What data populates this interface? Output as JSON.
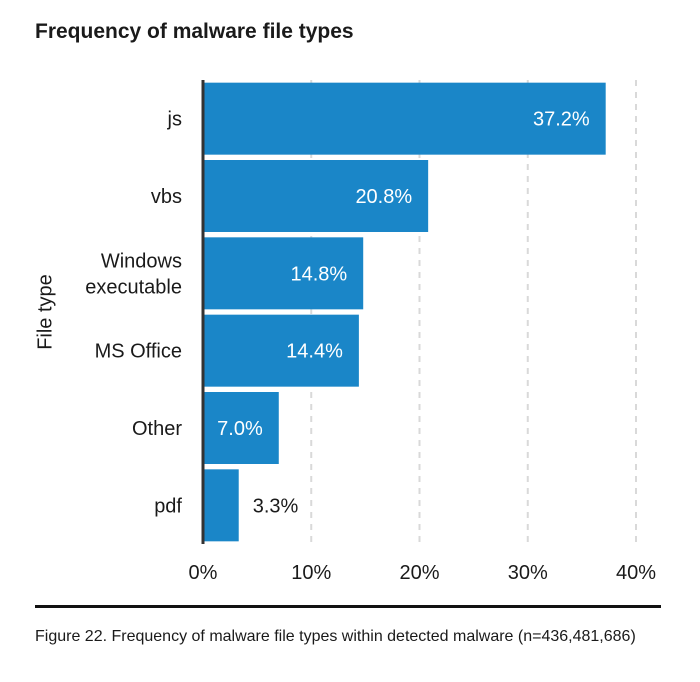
{
  "title": "Frequency of malware file types",
  "caption": "Figure 22. Frequency of malware file types within detected malware (n=436,481,686)",
  "colors": {
    "bar": "#1a86c8",
    "axis": "#333333",
    "grid": "#d9d9d9",
    "text": "#1a1a1a"
  },
  "chart_data": {
    "type": "bar",
    "orientation": "horizontal",
    "title": "Frequency of malware file types",
    "xlabel": "",
    "ylabel": "File type",
    "categories": [
      [
        "js"
      ],
      [
        "vbs"
      ],
      [
        "Windows",
        "executable"
      ],
      [
        "MS Office"
      ],
      [
        "Other"
      ],
      [
        "pdf"
      ]
    ],
    "values": [
      37.2,
      20.8,
      14.8,
      14.4,
      7.0,
      3.3
    ],
    "value_labels": [
      "37.2%",
      "20.8%",
      "14.8%",
      "14.4%",
      "7.0%",
      "3.3%"
    ],
    "xlim": [
      0,
      40
    ],
    "xticks": [
      0,
      10,
      20,
      30,
      40
    ],
    "xtick_labels": [
      "0%",
      "10%",
      "20%",
      "30%",
      "40%"
    ],
    "grid": "vertical dashed",
    "legend": "none"
  }
}
